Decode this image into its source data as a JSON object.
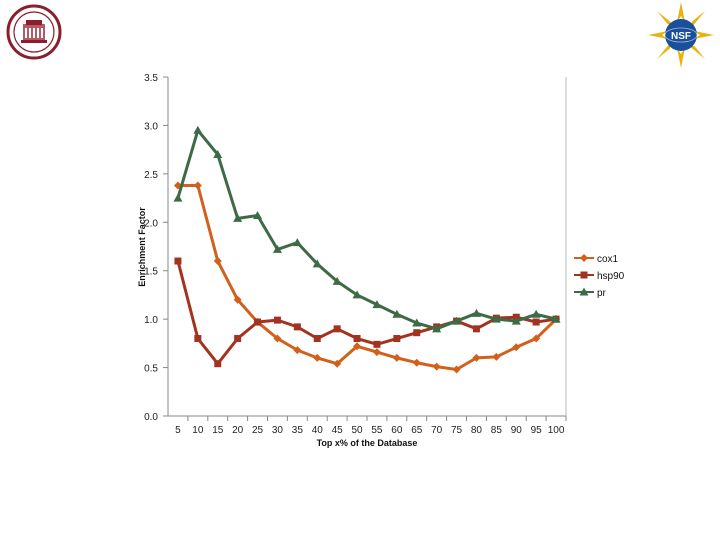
{
  "logos": {
    "left_seal_icon": "university-seal-icon",
    "right_logo_icon": "nsf-logo-icon",
    "right_logo_text": "NSF"
  },
  "chart_data": {
    "type": "line",
    "xlabel": "Top x% of the Database",
    "ylabel": "Enrichment Factor",
    "ylim": [
      0,
      3.5
    ],
    "yticks": [
      "0.0",
      "0.5",
      "1.0",
      "1.5",
      "2.0",
      "2.5",
      "3.0",
      "3.5"
    ],
    "categories": [
      "5",
      "10",
      "15",
      "20",
      "25",
      "30",
      "35",
      "40",
      "45",
      "50",
      "55",
      "60",
      "65",
      "70",
      "75",
      "80",
      "85",
      "90",
      "95",
      "100"
    ],
    "legend_position": "right",
    "grid": false,
    "series": [
      {
        "name": "cox1",
        "color": "#d2601a",
        "marker": "diamond",
        "values": [
          2.38,
          2.38,
          1.6,
          1.2,
          0.97,
          0.8,
          0.68,
          0.6,
          0.54,
          0.72,
          0.66,
          0.6,
          0.55,
          0.51,
          0.48,
          0.6,
          0.61,
          0.71,
          0.8,
          1.0
        ]
      },
      {
        "name": "hsp90",
        "color": "#a33320",
        "marker": "square",
        "values": [
          1.6,
          0.8,
          0.54,
          0.8,
          0.97,
          0.99,
          0.92,
          0.8,
          0.9,
          0.8,
          0.74,
          0.8,
          0.86,
          0.92,
          0.98,
          0.9,
          1.01,
          1.02,
          0.97,
          1.0
        ]
      },
      {
        "name": "pr",
        "color": "#3d6b45",
        "marker": "triangle",
        "values": [
          2.25,
          2.95,
          2.7,
          2.04,
          2.07,
          1.72,
          1.79,
          1.57,
          1.39,
          1.25,
          1.15,
          1.05,
          0.96,
          0.9,
          0.98,
          1.06,
          1.0,
          0.98,
          1.05,
          1.0
        ]
      }
    ]
  }
}
